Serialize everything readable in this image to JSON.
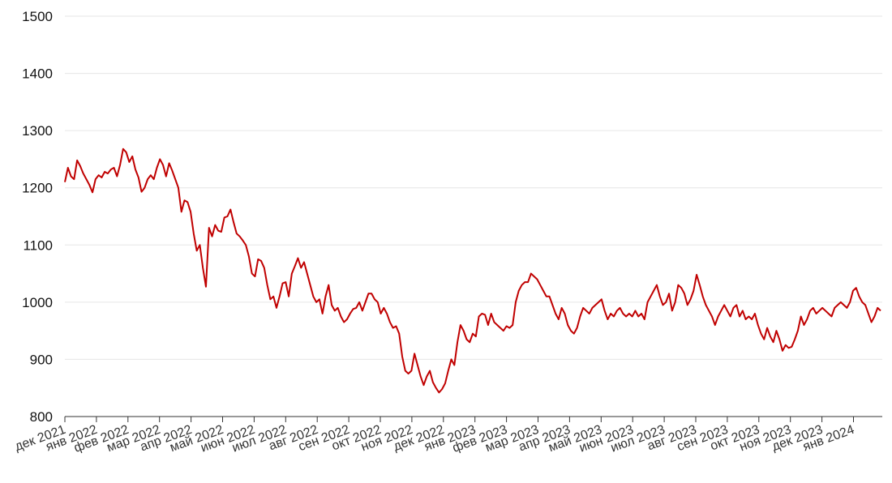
{
  "chart_data": {
    "type": "line",
    "title": "",
    "xlabel": "",
    "ylabel": "",
    "ylim": [
      800,
      1500
    ],
    "yticks": [
      800,
      900,
      1000,
      1100,
      1200,
      1300,
      1400,
      1500
    ],
    "grid": "horizontal",
    "line_color": "#c00000",
    "x_tick_labels": [
      "дек 2021",
      "янв 2022",
      "фев 2022",
      "мар 2022",
      "апр 2022",
      "май 2022",
      "июн 2022",
      "июл 2022",
      "авг 2022",
      "сен 2022",
      "окт 2022",
      "ноя 2022",
      "дек 2022",
      "янв 2023",
      "фев 2023",
      "мар 2023",
      "апр 2023",
      "май 2023",
      "июн 2023",
      "июл 2023",
      "авг 2023",
      "сен 2023",
      "окт 2023",
      "ноя 2023",
      "дек 2023",
      "янв 2024"
    ],
    "series": [
      {
        "values": [
          1210,
          1235,
          1220,
          1215,
          1248,
          1238,
          1225,
          1215,
          1205,
          1192,
          1215,
          1222,
          1218,
          1228,
          1225,
          1232,
          1235,
          1220,
          1240,
          1268,
          1262,
          1245,
          1255,
          1232,
          1218,
          1193,
          1200,
          1215,
          1222,
          1215,
          1235,
          1250,
          1240,
          1220,
          1243,
          1230,
          1215,
          1200,
          1158,
          1178,
          1175,
          1158,
          1120,
          1090,
          1100,
          1060,
          1027,
          1130,
          1115,
          1135,
          1125,
          1123,
          1148,
          1150,
          1162,
          1140,
          1120,
          1115,
          1108,
          1100,
          1080,
          1050,
          1045,
          1075,
          1072,
          1060,
          1030,
          1005,
          1010,
          990,
          1010,
          1033,
          1035,
          1010,
          1050,
          1063,
          1077,
          1060,
          1070,
          1050,
          1030,
          1010,
          1000,
          1005,
          980,
          1010,
          1030,
          995,
          985,
          990,
          975,
          965,
          970,
          980,
          988,
          990,
          1000,
          985,
          1000,
          1015,
          1015,
          1005,
          1000,
          980,
          990,
          980,
          965,
          955,
          958,
          945,
          905,
          880,
          875,
          880,
          910,
          890,
          870,
          855,
          870,
          880,
          860,
          850,
          842,
          848,
          858,
          880,
          900,
          890,
          930,
          960,
          950,
          935,
          930,
          945,
          940,
          975,
          980,
          978,
          960,
          980,
          965,
          960,
          955,
          950,
          958,
          955,
          960,
          1000,
          1020,
          1030,
          1035,
          1035,
          1050,
          1045,
          1040,
          1030,
          1020,
          1010,
          1010,
          995,
          980,
          970,
          990,
          980,
          960,
          950,
          945,
          955,
          975,
          990,
          985,
          980,
          990,
          995,
          1000,
          1005,
          985,
          970,
          980,
          975,
          985,
          990,
          980,
          975,
          980,
          975,
          985,
          975,
          980,
          970,
          1000,
          1010,
          1020,
          1030,
          1010,
          995,
          1000,
          1015,
          985,
          1000,
          1030,
          1025,
          1015,
          995,
          1005,
          1020,
          1048,
          1030,
          1010,
          995,
          985,
          975,
          960,
          975,
          985,
          995,
          985,
          975,
          990,
          995,
          975,
          985,
          970,
          975,
          970,
          980,
          960,
          945,
          935,
          955,
          940,
          930,
          950,
          935,
          915,
          925,
          920,
          922,
          935,
          950,
          975,
          960,
          970,
          985,
          990,
          980,
          985,
          990,
          985,
          980,
          975,
          990,
          995,
          1000,
          995,
          990,
          1000,
          1020,
          1025,
          1010,
          1000,
          995,
          980,
          965,
          975,
          990,
          985
        ]
      }
    ]
  }
}
